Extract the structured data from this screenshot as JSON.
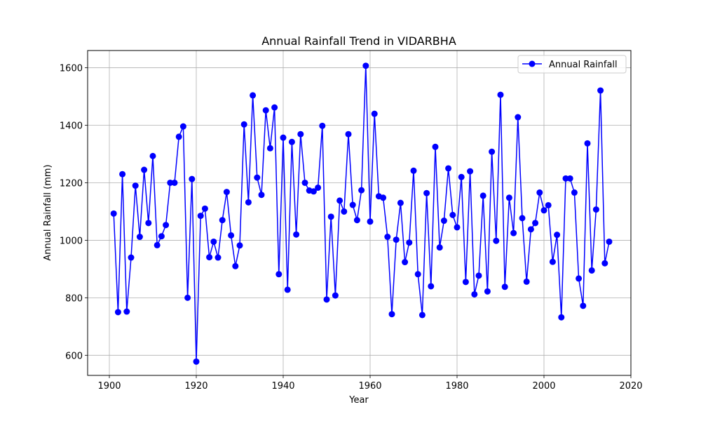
{
  "chart_data": {
    "type": "line",
    "title": "Annual Rainfall Trend in VIDARBHA",
    "xlabel": "Year",
    "ylabel": "Annual Rainfall (mm)",
    "xlim": [
      1895,
      2020
    ],
    "ylim": [
      530,
      1660
    ],
    "xticks": [
      1900,
      1920,
      1940,
      1960,
      1980,
      2000,
      2020
    ],
    "yticks": [
      600,
      800,
      1000,
      1200,
      1400,
      1600
    ],
    "grid": true,
    "legend_position": "top-right",
    "series": [
      {
        "name": "Annual Rainfall",
        "color": "#0000ff",
        "marker": "circle",
        "x": [
          1901,
          1902,
          1903,
          1904,
          1905,
          1906,
          1907,
          1908,
          1909,
          1910,
          1911,
          1912,
          1913,
          1914,
          1915,
          1916,
          1917,
          1918,
          1919,
          1920,
          1921,
          1922,
          1923,
          1924,
          1925,
          1926,
          1927,
          1928,
          1929,
          1930,
          1931,
          1932,
          1933,
          1934,
          1935,
          1936,
          1937,
          1938,
          1939,
          1940,
          1941,
          1942,
          1943,
          1944,
          1945,
          1946,
          1947,
          1948,
          1949,
          1950,
          1951,
          1952,
          1953,
          1954,
          1955,
          1956,
          1957,
          1958,
          1959,
          1960,
          1961,
          1962,
          1963,
          1964,
          1965,
          1966,
          1967,
          1968,
          1969,
          1970,
          1971,
          1972,
          1973,
          1974,
          1975,
          1976,
          1977,
          1978,
          1979,
          1980,
          1981,
          1982,
          1983,
          1984,
          1985,
          1986,
          1987,
          1988,
          1989,
          1990,
          1991,
          1992,
          1993,
          1994,
          1995,
          1996,
          1997,
          1998,
          1999,
          2000,
          2001,
          2002,
          2003,
          2004,
          2005,
          2006,
          2007,
          2008,
          2009,
          2010,
          2011,
          2012,
          2013,
          2014,
          2015
        ],
        "values": [
          1093,
          750,
          1230,
          752,
          940,
          1190,
          1012,
          1245,
          1060,
          1293,
          983,
          1014,
          1053,
          1200,
          1200,
          1360,
          1396,
          800,
          1213,
          578,
          1085,
          1110,
          941,
          995,
          940,
          1070,
          1168,
          1017,
          910,
          982,
          1403,
          1132,
          1504,
          1218,
          1158,
          1452,
          1320,
          1462,
          882,
          1357,
          828,
          1342,
          1020,
          1369,
          1200,
          1173,
          1170,
          1183,
          1398,
          794,
          1082,
          808,
          1138,
          1100,
          1369,
          1123,
          1070,
          1174,
          1607,
          1065,
          1440,
          1153,
          1148,
          1012,
          743,
          1002,
          1130,
          924,
          992,
          1242,
          882,
          740,
          1164,
          840,
          1325,
          975,
          1068,
          1250,
          1088,
          1045,
          1220,
          855,
          1240,
          812,
          877,
          1155,
          822,
          1308,
          998,
          1506,
          838,
          1148,
          1025,
          1428,
          1077,
          856,
          1038,
          1060,
          1166,
          1104,
          1122,
          925,
          1019,
          732,
          1215,
          1215,
          1166,
          867,
          772,
          1337,
          895,
          1107,
          1521,
          920,
          995
        ]
      }
    ]
  }
}
